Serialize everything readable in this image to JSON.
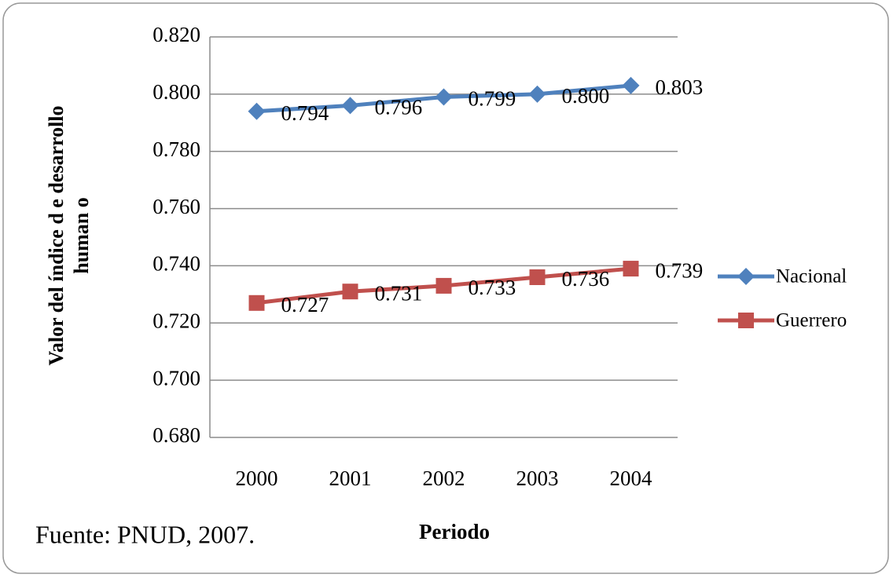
{
  "chart_data": {
    "type": "line",
    "ylabel": [
      "Valor del índice d e desarrollo",
      "human o"
    ],
    "xlabel": "Periodo",
    "source": "Fuente: PNUD, 2007.",
    "categories": [
      "2000",
      "2001",
      "2002",
      "2003",
      "2004"
    ],
    "series": [
      {
        "name": "Nacional",
        "color": "#4f81bd",
        "marker": "diamond",
        "values": [
          0.794,
          0.796,
          0.799,
          0.8,
          0.803
        ],
        "value_labels": [
          "0.794",
          "0.796",
          "0.799",
          "0.800",
          "0.803"
        ]
      },
      {
        "name": "Guerrero",
        "color": "#c0504d",
        "marker": "square",
        "values": [
          0.727,
          0.731,
          0.733,
          0.736,
          0.739
        ],
        "value_labels": [
          "0.727",
          "0.731",
          "0.733",
          "0.736",
          "0.739"
        ]
      }
    ],
    "ylim": [
      0.68,
      0.82
    ],
    "yticks": [
      {
        "value": 0.68,
        "label": "0.680"
      },
      {
        "value": 0.7,
        "label": "0.700"
      },
      {
        "value": 0.72,
        "label": "0.720"
      },
      {
        "value": 0.74,
        "label": "0.740"
      },
      {
        "value": 0.76,
        "label": "0.760"
      },
      {
        "value": 0.78,
        "label": "0.780"
      },
      {
        "value": 0.8,
        "label": "0.800"
      },
      {
        "value": 0.82,
        "label": "0.820"
      }
    ],
    "grid": true,
    "legend": "right"
  }
}
